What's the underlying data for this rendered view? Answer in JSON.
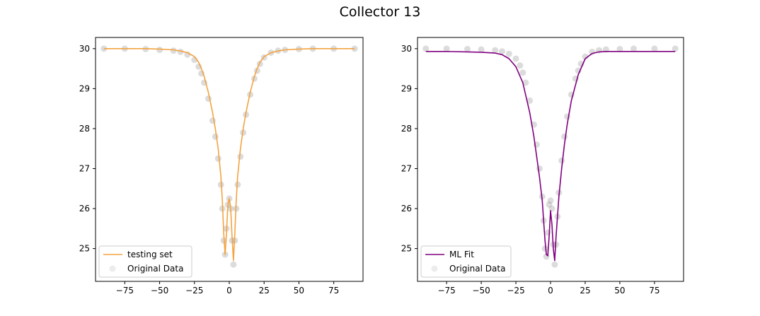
{
  "figure": {
    "title": "Collector 13",
    "background": "#ffffff"
  },
  "chart_data": [
    {
      "type": "line",
      "title": "",
      "xlabel": "",
      "ylabel": "",
      "xlim": [
        -96,
        96
      ],
      "ylim": [
        24.18,
        30.28
      ],
      "xticks": [
        -75,
        -50,
        -25,
        0,
        25,
        50,
        75
      ],
      "xtick_labels": [
        "−75",
        "−50",
        "−25",
        "0",
        "25",
        "50",
        "75"
      ],
      "yticks": [
        25,
        26,
        27,
        28,
        29,
        30
      ],
      "ytick_labels": [
        "25",
        "26",
        "27",
        "28",
        "29",
        "30"
      ],
      "grid": false,
      "legend_position": "lower-left",
      "series": [
        {
          "name": "testing set",
          "kind": "line",
          "color": "#f4a340",
          "x": [
            -90,
            -75,
            -60,
            -50,
            -40,
            -35,
            -30,
            -25,
            -22,
            -20,
            -18,
            -15,
            -12,
            -10,
            -8,
            -6,
            -5,
            -4,
            -3,
            -2,
            -1,
            0,
            1,
            2,
            3,
            4,
            5,
            6,
            8,
            10,
            12,
            15,
            18,
            20,
            22,
            25,
            30,
            35,
            40,
            50,
            60,
            75,
            90
          ],
          "y": [
            30.0,
            30.0,
            30.0,
            29.99,
            29.97,
            29.94,
            29.9,
            29.8,
            29.66,
            29.5,
            29.3,
            28.9,
            28.4,
            28.0,
            27.5,
            26.8,
            26.2,
            25.4,
            24.85,
            25.4,
            26.1,
            26.25,
            26.0,
            25.3,
            24.7,
            25.4,
            26.2,
            26.8,
            27.5,
            28.0,
            28.4,
            28.9,
            29.3,
            29.5,
            29.66,
            29.8,
            29.9,
            29.94,
            29.97,
            29.99,
            30.0,
            30.0,
            30.0
          ]
        },
        {
          "name": "Original Data",
          "kind": "scatter",
          "color": "#808080",
          "x": [
            -90,
            -75,
            -60,
            -50,
            -40,
            -35,
            -30,
            -25,
            -22,
            -20,
            -18,
            -15,
            -12,
            -10,
            -8,
            -6,
            -5,
            -4,
            -3,
            -2,
            -1,
            0,
            1,
            2,
            3,
            4,
            5,
            6,
            8,
            10,
            12,
            15,
            18,
            20,
            22,
            25,
            30,
            35,
            40,
            50,
            60,
            75,
            90
          ],
          "y": [
            30.0,
            30.0,
            29.99,
            29.97,
            29.95,
            29.92,
            29.85,
            29.72,
            29.55,
            29.38,
            29.15,
            28.75,
            28.2,
            27.8,
            27.25,
            26.6,
            26.0,
            25.2,
            24.85,
            25.5,
            26.1,
            26.25,
            26.0,
            25.2,
            24.6,
            25.2,
            26.0,
            26.6,
            27.3,
            27.9,
            28.35,
            28.85,
            29.25,
            29.45,
            29.62,
            29.78,
            29.9,
            29.95,
            29.97,
            29.99,
            30.0,
            30.0,
            30.0
          ]
        }
      ]
    },
    {
      "type": "line",
      "title": "",
      "xlabel": "",
      "ylabel": "",
      "xlim": [
        -96,
        96
      ],
      "ylim": [
        24.18,
        30.28
      ],
      "xticks": [
        -75,
        -50,
        -25,
        0,
        25,
        50,
        75
      ],
      "xtick_labels": [
        "−75",
        "−50",
        "−25",
        "0",
        "25",
        "50",
        "75"
      ],
      "yticks": [
        25,
        26,
        27,
        28,
        29,
        30
      ],
      "ytick_labels": [
        "25",
        "26",
        "27",
        "28",
        "29",
        "30"
      ],
      "grid": false,
      "legend_position": "lower-left",
      "series": [
        {
          "name": "ML Fit",
          "kind": "line",
          "color": "#800080",
          "x": [
            -90,
            -75,
            -60,
            -50,
            -40,
            -35,
            -30,
            -25,
            -20,
            -15,
            -12,
            -10,
            -8,
            -6,
            -5,
            -4,
            -3,
            -2,
            -1,
            0,
            1,
            2,
            3,
            4,
            5,
            6,
            8,
            10,
            12,
            15,
            20,
            25,
            30,
            35,
            40,
            50,
            60,
            75,
            90
          ],
          "y": [
            29.93,
            29.93,
            29.92,
            29.91,
            29.89,
            29.85,
            29.75,
            29.55,
            29.15,
            28.4,
            27.8,
            27.3,
            26.8,
            26.2,
            25.7,
            25.2,
            24.85,
            24.82,
            25.3,
            25.95,
            25.6,
            25.0,
            24.7,
            25.3,
            25.8,
            26.3,
            27.0,
            27.6,
            28.1,
            28.7,
            29.35,
            29.75,
            29.88,
            29.92,
            29.93,
            29.93,
            29.93,
            29.93,
            29.93
          ]
        },
        {
          "name": "Original Data",
          "kind": "scatter",
          "color": "#808080",
          "x": [
            -90,
            -75,
            -60,
            -50,
            -40,
            -35,
            -30,
            -25,
            -22,
            -20,
            -18,
            -15,
            -12,
            -10,
            -8,
            -6,
            -5,
            -4,
            -3,
            -2,
            -1,
            0,
            1,
            2,
            3,
            4,
            5,
            6,
            8,
            10,
            12,
            15,
            18,
            20,
            22,
            25,
            30,
            35,
            40,
            50,
            60,
            75,
            90
          ],
          "y": [
            30.0,
            30.0,
            29.99,
            29.98,
            29.96,
            29.93,
            29.87,
            29.75,
            29.58,
            29.4,
            29.15,
            28.7,
            28.1,
            27.6,
            27.0,
            26.3,
            25.7,
            25.0,
            24.8,
            25.4,
            26.1,
            26.2,
            26.0,
            25.1,
            24.6,
            25.1,
            25.8,
            26.4,
            27.2,
            27.8,
            28.3,
            28.85,
            29.25,
            29.45,
            29.62,
            29.8,
            29.92,
            29.96,
            29.98,
            29.99,
            30.0,
            30.0,
            30.0
          ]
        }
      ]
    }
  ]
}
